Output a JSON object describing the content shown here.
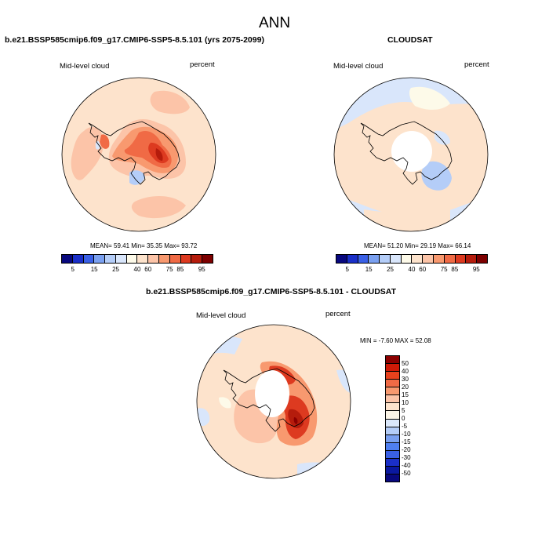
{
  "page_title": "ANN",
  "panels": [
    {
      "title": "b.e21.BSSP585cmip6.f09_g17.CMIP6-SSP5-8.5.101 (yrs 2075-2099)",
      "field_label": "Mid-level cloud",
      "units_label": "percent",
      "stats": "MEAN=  59.41  Min=  35.35  Max=  93.72",
      "stats_values": {
        "mean": 59.41,
        "min": 35.35,
        "max": 93.72
      },
      "colorbar_ticks": [
        "5",
        "15",
        "25",
        "40",
        "60",
        "75",
        "85",
        "95"
      ]
    },
    {
      "title": "CLOUDSAT",
      "field_label": "Mid-level cloud",
      "units_label": "percent",
      "stats": "MEAN=  51.20  Min=  29.19  Max=  66.14",
      "stats_values": {
        "mean": 51.2,
        "min": 29.19,
        "max": 66.14
      },
      "colorbar_ticks": [
        "5",
        "15",
        "25",
        "40",
        "60",
        "75",
        "85",
        "95"
      ]
    },
    {
      "title": "b.e21.BSSP585cmip6.f09_g17.CMIP6-SSP5-8.5.101 - CLOUDSAT",
      "field_label": "Mid-level cloud",
      "units_label": "percent",
      "stats": "MIN =  -7.60 MAX =  52.08",
      "stats_values": {
        "min": -7.6,
        "max": 52.08
      },
      "colorbar_ticks": [
        "50",
        "40",
        "30",
        "20",
        "15",
        "10",
        "5",
        "0",
        "-5",
        "-10",
        "-15",
        "-20",
        "-30",
        "-40",
        "-50"
      ]
    }
  ],
  "colors": {
    "abs_scale": [
      "#08087e",
      "#1a2fc8",
      "#3a60e6",
      "#7aa0f0",
      "#b4cdf8",
      "#d9e6fb",
      "#fdfae9",
      "#fde3cc",
      "#fcc4a8",
      "#f8996f",
      "#f06a45",
      "#dd3a20",
      "#b51c0c",
      "#7d0000"
    ],
    "diff_scale": [
      "#8b0000",
      "#cf1a07",
      "#e8421d",
      "#f06a45",
      "#f8996f",
      "#fcc4a8",
      "#fde3cc",
      "#fbf4e6",
      "#dbe8fb",
      "#b4cdf8",
      "#7aa0f0",
      "#4f7ff0",
      "#3a60e6",
      "#1a2fc8",
      "#0a18a0",
      "#08087e"
    ],
    "coast": "#000000"
  }
}
